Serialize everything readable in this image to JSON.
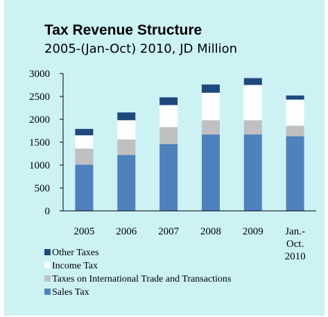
{
  "chart_data": {
    "type": "bar",
    "stacked": true,
    "title": "Tax Revenue Structure",
    "subtitle": "2005-(Jan-Oct) 2010, JD Million",
    "categories": [
      "2005",
      "2006",
      "2007",
      "2008",
      "2009",
      "Jan.-Oct. 2010"
    ],
    "category_lines": [
      [
        "2005"
      ],
      [
        "2006"
      ],
      [
        "2007"
      ],
      [
        "2008"
      ],
      [
        "2009"
      ],
      [
        "Jan.-",
        "Oct.",
        "2010"
      ]
    ],
    "ylim": [
      0,
      3000
    ],
    "yticks": [
      0,
      500,
      1000,
      1500,
      2000,
      2500,
      3000
    ],
    "grid": false,
    "legend_position": "bottom-left",
    "series": [
      {
        "name": "Sales Tax",
        "color": "#4f81bd",
        "values": [
          1010,
          1220,
          1460,
          1670,
          1670,
          1630
        ]
      },
      {
        "name": "Taxes on International Trade and Transactions",
        "color": "#c0c0c0",
        "values": [
          350,
          340,
          370,
          310,
          310,
          230
        ]
      },
      {
        "name": "Income Tax",
        "color": "#ffffff",
        "values": [
          290,
          420,
          480,
          600,
          770,
          570
        ]
      },
      {
        "name": "Other Taxes",
        "color": "#1f497d",
        "values": [
          140,
          170,
          170,
          180,
          150,
          90
        ]
      }
    ],
    "legend_order": [
      3,
      2,
      1,
      0
    ]
  }
}
